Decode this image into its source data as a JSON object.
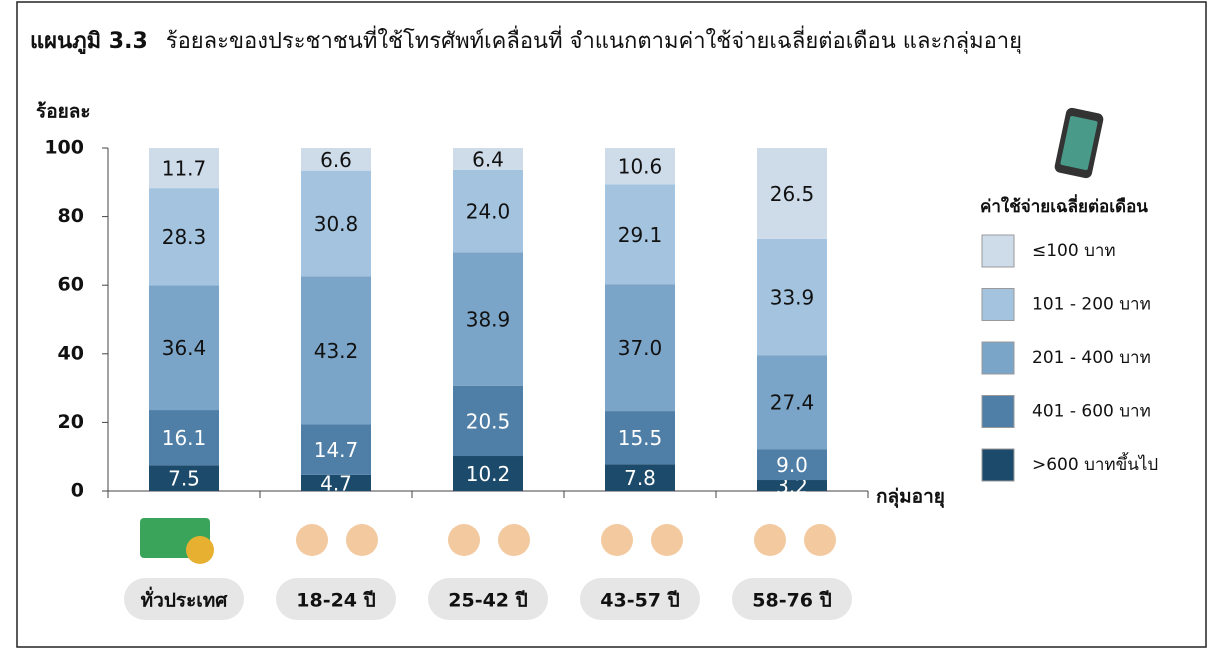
{
  "chart_data": {
    "type": "stacked_bar",
    "title_label": "แผนภูมิ 3.3",
    "title": "ร้อยละของประชาชนที่ใช้โทรศัพท์เคลื่อนที่  จำแนกตามค่าใช้จ่ายเฉลี่ยต่อเดือน  และกลุ่มอายุ",
    "y_label": "ร้อยละ",
    "x_label": "กลุ่มอายุ",
    "legend_title": "ค่าใช้จ่ายเฉลี่ยต่อเดือน",
    "categories": [
      "ทั่วประเทศ",
      "18-24 ปี",
      "25-42 ปี",
      "43-57 ปี",
      "58-76 ปี"
    ],
    "series": [
      {
        "name": ">600 บาทขึ้นไป",
        "color": "#1b4a6b",
        "values": [
          7.5,
          4.7,
          10.2,
          7.8,
          3.2
        ],
        "value_labels": [
          "7.5",
          "4.7",
          "10.2",
          "7.8",
          "3.2"
        ]
      },
      {
        "name": "401 - 600 บาท",
        "color": "#4f7ea6",
        "values": [
          16.1,
          14.7,
          20.5,
          15.5,
          9.0
        ],
        "value_labels": [
          "16.1",
          "14.7",
          "20.5",
          "15.5",
          "9.0"
        ]
      },
      {
        "name": "201 - 400 บาท",
        "color": "#7ba5c8",
        "values": [
          36.4,
          43.2,
          38.9,
          37.0,
          27.4
        ],
        "value_labels": [
          "36.4",
          "43.2",
          "38.9",
          "37.0",
          "27.4"
        ]
      },
      {
        "name": "101 - 200 บาท",
        "color": "#a3c3df",
        "values": [
          28.3,
          30.8,
          24.0,
          29.1,
          33.9
        ],
        "value_labels": [
          "28.3",
          "30.8",
          "24.0",
          "29.1",
          "33.9"
        ]
      },
      {
        "name": "≤100 บาท",
        "color": "#cedcea",
        "values": [
          11.7,
          6.6,
          6.4,
          10.6,
          26.5
        ],
        "value_labels": [
          "11.7",
          "6.6",
          "6.4",
          "10.6",
          "26.5"
        ]
      }
    ],
    "ylim": [
      0,
      100
    ],
    "yticks": [
      0,
      20,
      40,
      60,
      80,
      100
    ]
  }
}
